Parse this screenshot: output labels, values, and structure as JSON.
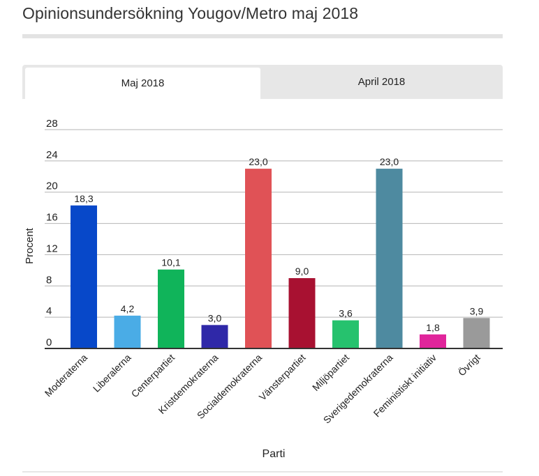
{
  "page": {
    "title": "Opinionsundersökning Yougov/Metro maj 2018"
  },
  "tabs": [
    {
      "label": "Maj 2018",
      "active": true
    },
    {
      "label": "April 2018",
      "active": false
    }
  ],
  "chart_data": {
    "type": "bar",
    "title": "",
    "xlabel": "Parti",
    "ylabel": "Procent",
    "ylim": [
      0,
      28
    ],
    "yticks": [
      0,
      4,
      8,
      12,
      16,
      20,
      24,
      28
    ],
    "grid": true,
    "legend": "none",
    "categories": [
      "Moderaterna",
      "Liberalerna",
      "Centerpartiet",
      "Kristdemokraterna",
      "Socialdemokraterna",
      "Vänsterpartiet",
      "Miljöpartiet",
      "Sverigedemokraterna",
      "Feministiskt initiativ",
      "Övrigt"
    ],
    "values": [
      18.3,
      4.2,
      10.1,
      3.0,
      23.0,
      9.0,
      3.6,
      23.0,
      1.8,
      3.9
    ],
    "value_labels": [
      "18,3",
      "4,2",
      "10,1",
      "3,0",
      "23,0",
      "9,0",
      "3,6",
      "23,0",
      "1,8",
      "3,9"
    ],
    "colors": [
      "#0748c9",
      "#4aace6",
      "#10b45a",
      "#2f28a8",
      "#e05256",
      "#a81131",
      "#26c26e",
      "#4e8aa0",
      "#e0259b",
      "#9a9a9a"
    ]
  }
}
